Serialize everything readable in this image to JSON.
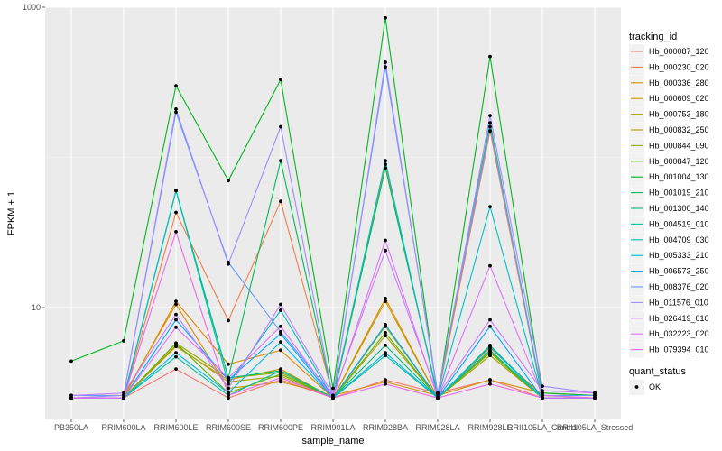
{
  "chart_data": {
    "type": "line",
    "title": "",
    "xlabel": "sample_name",
    "ylabel": "FPKM + 1",
    "yscale": "log10",
    "ylim": [
      1.8,
      1000
    ],
    "yticks": [
      10,
      1000
    ],
    "ytick_labels": [
      "10",
      "1000"
    ],
    "grid": true,
    "legend_position": "right",
    "categories": [
      "PB350LA",
      "RRIM600LA",
      "RRIM600LE",
      "RRIM600SE",
      "RRIM600PE",
      "RRIM901LA",
      "RRIM928BA",
      "RRIM928LA",
      "RRIM928LE",
      "RRII105LA_Control",
      "RRII105LA_Stressed"
    ],
    "series": [
      {
        "name": "Hb_000087_120",
        "color": "#F8766D",
        "values": [
          2.5,
          2.5,
          3.9,
          2.5,
          3.3,
          2.5,
          3.3,
          2.7,
          3.3,
          2.5,
          2.5
        ]
      },
      {
        "name": "Hb_000230_020",
        "color": "#F07F4B",
        "values": [
          2.5,
          2.5,
          43,
          8.2,
          51,
          2.6,
          90,
          2.5,
          150,
          2.5,
          2.5
        ]
      },
      {
        "name": "Hb_000336_280",
        "color": "#E38900",
        "values": [
          2.5,
          2.5,
          11,
          4.2,
          5.2,
          2.5,
          11.5,
          2.5,
          5.4,
          2.6,
          2.5
        ]
      },
      {
        "name": "Hb_000609_020",
        "color": "#D49200",
        "values": [
          2.6,
          2.6,
          10.5,
          2.9,
          3.2,
          2.6,
          3.2,
          2.6,
          3.3,
          2.7,
          2.6
        ]
      },
      {
        "name": "Hb_000753_180",
        "color": "#C19B00",
        "values": [
          2.5,
          2.5,
          5.5,
          3.3,
          3.9,
          2.5,
          11,
          2.5,
          4.8,
          2.5,
          2.5
        ]
      },
      {
        "name": "Hb_000832_250",
        "color": "#AAA200",
        "values": [
          2.5,
          2.5,
          5.6,
          3.2,
          3.5,
          2.5,
          6.5,
          2.5,
          4.8,
          2.5,
          2.5
        ]
      },
      {
        "name": "Hb_000844_090",
        "color": "#8FAA00",
        "values": [
          2.5,
          2.5,
          5.8,
          3.4,
          3.7,
          2.5,
          7.5,
          2.5,
          5.1,
          2.5,
          2.5
        ]
      },
      {
        "name": "Hb_000847_120",
        "color": "#64B200",
        "values": [
          2.5,
          2.5,
          5.8,
          2.7,
          3.6,
          2.5,
          6.8,
          2.5,
          5.0,
          2.5,
          2.5
        ]
      },
      {
        "name": "Hb_001004_130",
        "color": "#00B81E",
        "values": [
          4.4,
          6,
          300,
          70,
          330,
          2.9,
          850,
          2.5,
          470,
          2.7,
          2.6
        ]
      },
      {
        "name": "Hb_001019_210",
        "color": "#00BC56",
        "values": [
          2.5,
          2.5,
          60,
          3.4,
          95,
          2.5,
          85,
          2.6,
          170,
          2.5,
          2.5
        ]
      },
      {
        "name": "Hb_001300_140",
        "color": "#00BF7D",
        "values": [
          2.5,
          2.5,
          60,
          3.4,
          3.8,
          2.5,
          5.6,
          2.5,
          5.6,
          2.5,
          2.5
        ]
      },
      {
        "name": "Hb_004519_010",
        "color": "#00C19F",
        "values": [
          2.5,
          2.5,
          4.7,
          2.6,
          3.8,
          2.5,
          4.8,
          2.5,
          5.2,
          2.5,
          2.5
        ]
      },
      {
        "name": "Hb_004709_030",
        "color": "#00BFC4",
        "values": [
          2.5,
          2.5,
          60,
          3.1,
          9.6,
          2.5,
          95,
          2.5,
          47,
          2.5,
          2.5
        ]
      },
      {
        "name": "Hb_005333_210",
        "color": "#00B8E7",
        "values": [
          2.5,
          2.5,
          5.0,
          2.7,
          5.9,
          2.5,
          5.0,
          2.5,
          5.5,
          2.5,
          2.5
        ]
      },
      {
        "name": "Hb_006573_250",
        "color": "#00A9FF",
        "values": [
          2.5,
          2.5,
          8.3,
          3.3,
          6.7,
          2.5,
          7.7,
          2.5,
          7.5,
          2.5,
          2.5
        ]
      },
      {
        "name": "Hb_008376_020",
        "color": "#619CFF",
        "values": [
          2.6,
          2.6,
          200,
          20,
          6.9,
          2.6,
          400,
          2.7,
          160,
          2.6,
          2.6
        ]
      },
      {
        "name": "Hb_011576_010",
        "color": "#9F8CFF",
        "values": [
          2.5,
          2.6,
          210,
          19.5,
          160,
          2.5,
          430,
          2.6,
          190,
          3.0,
          2.7
        ]
      },
      {
        "name": "Hb_026419_010",
        "color": "#C77CFF",
        "values": [
          2.6,
          2.7,
          9.0,
          2.9,
          10.5,
          2.6,
          24,
          2.6,
          8.3,
          2.8,
          2.7
        ]
      },
      {
        "name": "Hb_032223_020",
        "color": "#DB72FB",
        "values": [
          2.5,
          2.5,
          7.4,
          3.4,
          7.5,
          2.5,
          28,
          2.5,
          19,
          2.6,
          2.5
        ]
      },
      {
        "name": "Hb_079394_010",
        "color": "#ED68ED",
        "values": [
          2.5,
          2.5,
          32,
          2.6,
          3.4,
          2.5,
          3.1,
          2.5,
          3.1,
          2.5,
          2.5
        ]
      }
    ],
    "legend_title": "tracking_id",
    "legend2_title": "quant_status",
    "legend2_items": [
      "OK"
    ]
  }
}
